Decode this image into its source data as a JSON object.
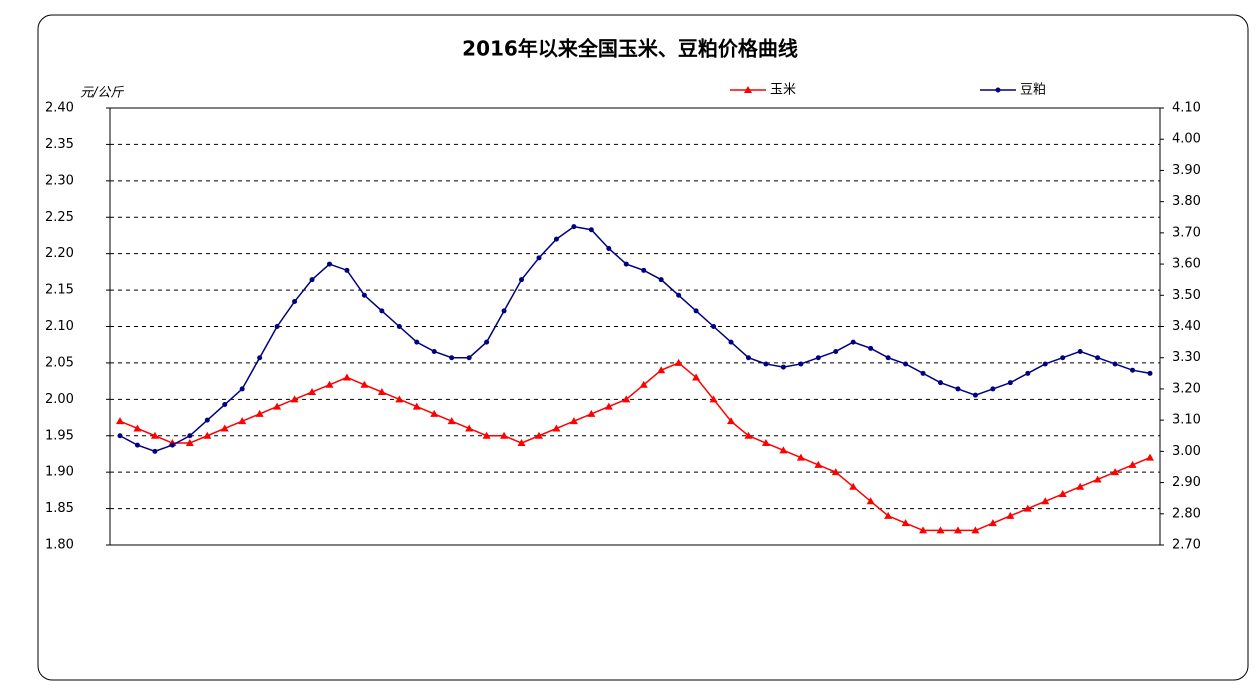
{
  "chart_data": {
    "type": "line",
    "title": "2016年以来全国玉米、豆粕价格曲线",
    "y_label": "元/公斤",
    "grid": true,
    "legend": "top-right",
    "ylim": [
      1.8,
      2.4
    ],
    "yticks": [
      {
        "value": 1.8,
        "label": "1.80"
      },
      {
        "value": 1.85,
        "label": "1.85"
      },
      {
        "value": 1.9,
        "label": "1.90"
      },
      {
        "value": 1.95,
        "label": "1.95"
      },
      {
        "value": 2.0,
        "label": "2.00"
      },
      {
        "value": 2.05,
        "label": "2.05"
      },
      {
        "value": 2.1,
        "label": "2.10"
      },
      {
        "value": 2.15,
        "label": "2.15"
      },
      {
        "value": 2.2,
        "label": "2.20"
      },
      {
        "value": 2.25,
        "label": "2.25"
      },
      {
        "value": 2.3,
        "label": "2.30"
      },
      {
        "value": 2.35,
        "label": "2.35"
      },
      {
        "value": 2.4,
        "label": "2.40"
      }
    ],
    "y2lim": [
      2.7,
      4.1
    ],
    "y2ticks": [
      {
        "value": 2.7,
        "label": "2.70"
      },
      {
        "value": 2.8,
        "label": "2.80"
      },
      {
        "value": 2.9,
        "label": "2.90"
      },
      {
        "value": 3.0,
        "label": "3.00"
      },
      {
        "value": 3.1,
        "label": "3.10"
      },
      {
        "value": 3.2,
        "label": "3.20"
      },
      {
        "value": 3.3,
        "label": "3.30"
      },
      {
        "value": 3.4,
        "label": "3.40"
      },
      {
        "value": 3.5,
        "label": "3.50"
      },
      {
        "value": 3.6,
        "label": "3.60"
      },
      {
        "value": 3.7,
        "label": "3.70"
      },
      {
        "value": 3.8,
        "label": "3.80"
      },
      {
        "value": 3.9,
        "label": "3.90"
      },
      {
        "value": 4.0,
        "label": "4.00"
      },
      {
        "value": 4.1,
        "label": "4.10"
      }
    ],
    "series": [
      {
        "name": "玉米",
        "color": "#ff0000",
        "marker": "triangle",
        "axis": "y",
        "values": [
          1.97,
          1.96,
          1.95,
          1.94,
          1.94,
          1.95,
          1.96,
          1.97,
          1.98,
          1.99,
          2.0,
          2.01,
          2.02,
          2.03,
          2.02,
          2.01,
          2.0,
          1.99,
          1.98,
          1.97,
          1.96,
          1.95,
          1.95,
          1.94,
          1.95,
          1.96,
          1.97,
          1.98,
          1.99,
          2.0,
          2.02,
          2.04,
          2.05,
          2.03,
          2.0,
          1.97,
          1.95,
          1.94,
          1.93,
          1.92,
          1.91,
          1.9,
          1.88,
          1.86,
          1.84,
          1.83,
          1.82,
          1.82,
          1.82,
          1.82,
          1.83,
          1.84,
          1.85,
          1.86,
          1.87,
          1.88,
          1.89,
          1.9,
          1.91,
          1.92
        ]
      },
      {
        "name": "豆粕",
        "color": "#000080",
        "marker": "circle",
        "axis": "y2",
        "values": [
          3.05,
          3.02,
          3.0,
          3.02,
          3.05,
          3.1,
          3.15,
          3.2,
          3.3,
          3.4,
          3.48,
          3.55,
          3.6,
          3.58,
          3.5,
          3.45,
          3.4,
          3.35,
          3.32,
          3.3,
          3.3,
          3.35,
          3.45,
          3.55,
          3.62,
          3.68,
          3.72,
          3.71,
          3.65,
          3.6,
          3.58,
          3.55,
          3.5,
          3.45,
          3.4,
          3.35,
          3.3,
          3.28,
          3.27,
          3.28,
          3.3,
          3.32,
          3.35,
          3.33,
          3.3,
          3.28,
          3.25,
          3.22,
          3.2,
          3.18,
          3.2,
          3.22,
          3.25,
          3.28,
          3.3,
          3.32,
          3.3,
          3.28,
          3.26,
          3.25
        ]
      }
    ]
  }
}
